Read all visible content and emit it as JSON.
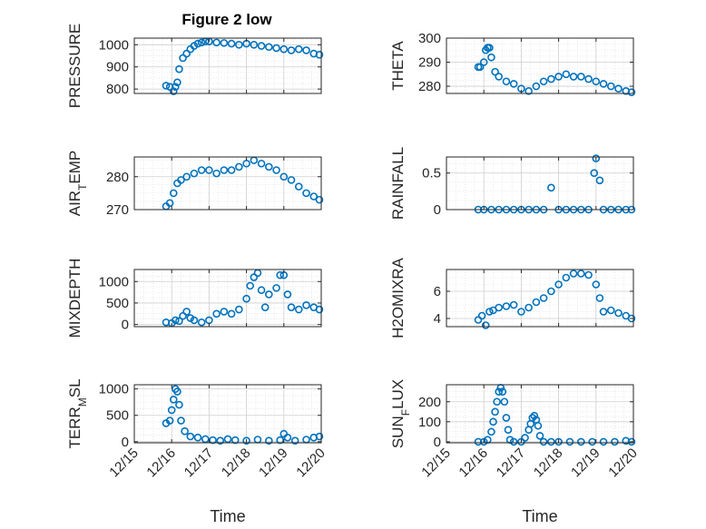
{
  "figure": {
    "title": "Figure 2 low",
    "xlabel": "Time",
    "x_tick_labels": [
      "12/15",
      "12/16",
      "12/17",
      "12/18",
      "12/19",
      "12/20"
    ],
    "marker_color": "#0072BD"
  },
  "chart_data": [
    {
      "type": "scatter",
      "ylabel": "PRESSURE",
      "xlim": [
        0,
        5
      ],
      "ylim": [
        780,
        1030
      ],
      "yticks": [
        800,
        900,
        1000
      ],
      "x": [
        0.85,
        0.95,
        1.05,
        1.1,
        1.15,
        1.2,
        1.3,
        1.4,
        1.5,
        1.6,
        1.7,
        1.8,
        1.9,
        2.0,
        2.2,
        2.4,
        2.6,
        2.8,
        3.0,
        3.2,
        3.4,
        3.6,
        3.8,
        4.0,
        4.2,
        4.4,
        4.6,
        4.8,
        4.95
      ],
      "y": [
        815,
        810,
        790,
        810,
        830,
        890,
        940,
        960,
        980,
        995,
        1005,
        1010,
        1015,
        1015,
        1010,
        1008,
        1005,
        1000,
        1005,
        1000,
        995,
        990,
        985,
        980,
        975,
        980,
        975,
        960,
        955
      ]
    },
    {
      "type": "scatter",
      "ylabel": "THETA",
      "xlim": [
        0,
        5
      ],
      "ylim": [
        277,
        300
      ],
      "yticks": [
        280,
        290,
        300
      ],
      "x": [
        0.85,
        0.9,
        1.0,
        1.05,
        1.1,
        1.15,
        1.2,
        1.3,
        1.4,
        1.6,
        1.8,
        2.0,
        2.2,
        2.4,
        2.6,
        2.8,
        3.0,
        3.2,
        3.4,
        3.6,
        3.8,
        4.0,
        4.2,
        4.4,
        4.6,
        4.8,
        4.95
      ],
      "y": [
        288,
        288,
        290,
        295,
        296,
        296,
        292,
        286,
        284,
        282,
        281,
        279,
        278,
        280,
        282,
        283,
        284,
        285,
        284,
        284,
        283,
        282,
        281,
        280,
        279,
        278,
        277.5
      ]
    },
    {
      "type": "scatter",
      "ylabel": "AIR_TEMP",
      "xlim": [
        0,
        5
      ],
      "ylim": [
        270,
        286
      ],
      "yticks": [
        270,
        280
      ],
      "x": [
        0.85,
        0.95,
        1.05,
        1.15,
        1.25,
        1.4,
        1.6,
        1.8,
        2.0,
        2.2,
        2.4,
        2.6,
        2.8,
        3.0,
        3.2,
        3.4,
        3.6,
        3.8,
        4.0,
        4.2,
        4.4,
        4.6,
        4.8,
        4.95
      ],
      "y": [
        271,
        272,
        275,
        278,
        279,
        280,
        281,
        282,
        282,
        281,
        282,
        282,
        283,
        284,
        285,
        284,
        283,
        282,
        280,
        279,
        277,
        275,
        274,
        273
      ]
    },
    {
      "type": "scatter",
      "ylabel": "RAINFALL",
      "xlim": [
        0,
        5
      ],
      "ylim": [
        0,
        0.72
      ],
      "yticks": [
        0,
        0.5
      ],
      "x": [
        0.85,
        1.0,
        1.2,
        1.4,
        1.6,
        1.8,
        2.0,
        2.2,
        2.4,
        2.6,
        2.8,
        3.0,
        3.2,
        3.4,
        3.6,
        3.8,
        3.95,
        4.0,
        4.1,
        4.2,
        4.4,
        4.6,
        4.8,
        4.95
      ],
      "y": [
        0,
        0,
        0,
        0,
        0,
        0,
        0,
        0,
        0,
        0,
        0.3,
        0,
        0,
        0,
        0,
        0,
        0.5,
        0.7,
        0.4,
        0,
        0,
        0,
        0,
        0
      ]
    },
    {
      "type": "scatter",
      "ylabel": "MIXDEPTH",
      "xlim": [
        0,
        5
      ],
      "ylim": [
        -50,
        1280
      ],
      "yticks": [
        0,
        500,
        1000
      ],
      "x": [
        0.85,
        1.0,
        1.1,
        1.2,
        1.3,
        1.4,
        1.5,
        1.6,
        1.8,
        2.0,
        2.2,
        2.4,
        2.6,
        2.8,
        3.0,
        3.1,
        3.2,
        3.3,
        3.4,
        3.5,
        3.6,
        3.8,
        3.9,
        4.0,
        4.1,
        4.2,
        4.4,
        4.6,
        4.8,
        4.95
      ],
      "y": [
        50,
        30,
        100,
        80,
        200,
        300,
        150,
        100,
        50,
        100,
        250,
        300,
        250,
        350,
        600,
        900,
        1100,
        1200,
        800,
        400,
        700,
        850,
        1150,
        1150,
        700,
        400,
        350,
        450,
        400,
        350
      ]
    },
    {
      "type": "scatter",
      "ylabel": "H2OMIXRA",
      "xlim": [
        0,
        5
      ],
      "ylim": [
        3.4,
        7.6
      ],
      "yticks": [
        4,
        6
      ],
      "x": [
        0.85,
        0.95,
        1.05,
        1.15,
        1.25,
        1.4,
        1.6,
        1.8,
        2.0,
        2.2,
        2.4,
        2.6,
        2.8,
        3.0,
        3.2,
        3.4,
        3.6,
        3.8,
        4.0,
        4.1,
        4.2,
        4.4,
        4.6,
        4.8,
        4.95
      ],
      "y": [
        3.9,
        4.2,
        3.5,
        4.5,
        4.6,
        4.8,
        4.9,
        5.0,
        4.5,
        4.8,
        5.2,
        5.5,
        6.0,
        6.5,
        7.0,
        7.3,
        7.3,
        7.2,
        6.5,
        5.5,
        4.5,
        4.6,
        4.4,
        4.2,
        4.0
      ]
    },
    {
      "type": "scatter",
      "ylabel": "TERR_MSL",
      "xlim": [
        0,
        5
      ],
      "ylim": [
        -20,
        1080
      ],
      "yticks": [
        0,
        500,
        1000
      ],
      "x": [
        0.85,
        0.95,
        1.0,
        1.05,
        1.1,
        1.15,
        1.2,
        1.25,
        1.35,
        1.5,
        1.7,
        1.9,
        2.1,
        2.3,
        2.5,
        2.7,
        3.0,
        3.3,
        3.6,
        3.9,
        4.0,
        4.1,
        4.3,
        4.6,
        4.8,
        4.95
      ],
      "y": [
        350,
        400,
        600,
        800,
        1000,
        950,
        700,
        400,
        200,
        100,
        80,
        50,
        30,
        20,
        50,
        30,
        20,
        40,
        20,
        30,
        150,
        80,
        20,
        40,
        80,
        100
      ]
    },
    {
      "type": "scatter",
      "ylabel": "SUN_FLUX",
      "xlim": [
        0,
        5
      ],
      "ylim": [
        -5,
        285
      ],
      "yticks": [
        0,
        100,
        200
      ],
      "x": [
        0.85,
        1.0,
        1.1,
        1.2,
        1.25,
        1.3,
        1.35,
        1.4,
        1.45,
        1.5,
        1.55,
        1.6,
        1.65,
        1.7,
        1.8,
        2.0,
        2.1,
        2.2,
        2.25,
        2.3,
        2.35,
        2.4,
        2.45,
        2.5,
        2.6,
        2.8,
        3.0,
        3.3,
        3.6,
        3.9,
        4.2,
        4.5,
        4.8,
        4.95
      ],
      "y": [
        0,
        0,
        10,
        50,
        100,
        150,
        200,
        250,
        270,
        250,
        200,
        120,
        60,
        10,
        0,
        0,
        20,
        60,
        90,
        120,
        130,
        110,
        80,
        30,
        0,
        0,
        0,
        0,
        0,
        0,
        0,
        0,
        5,
        0
      ]
    }
  ]
}
